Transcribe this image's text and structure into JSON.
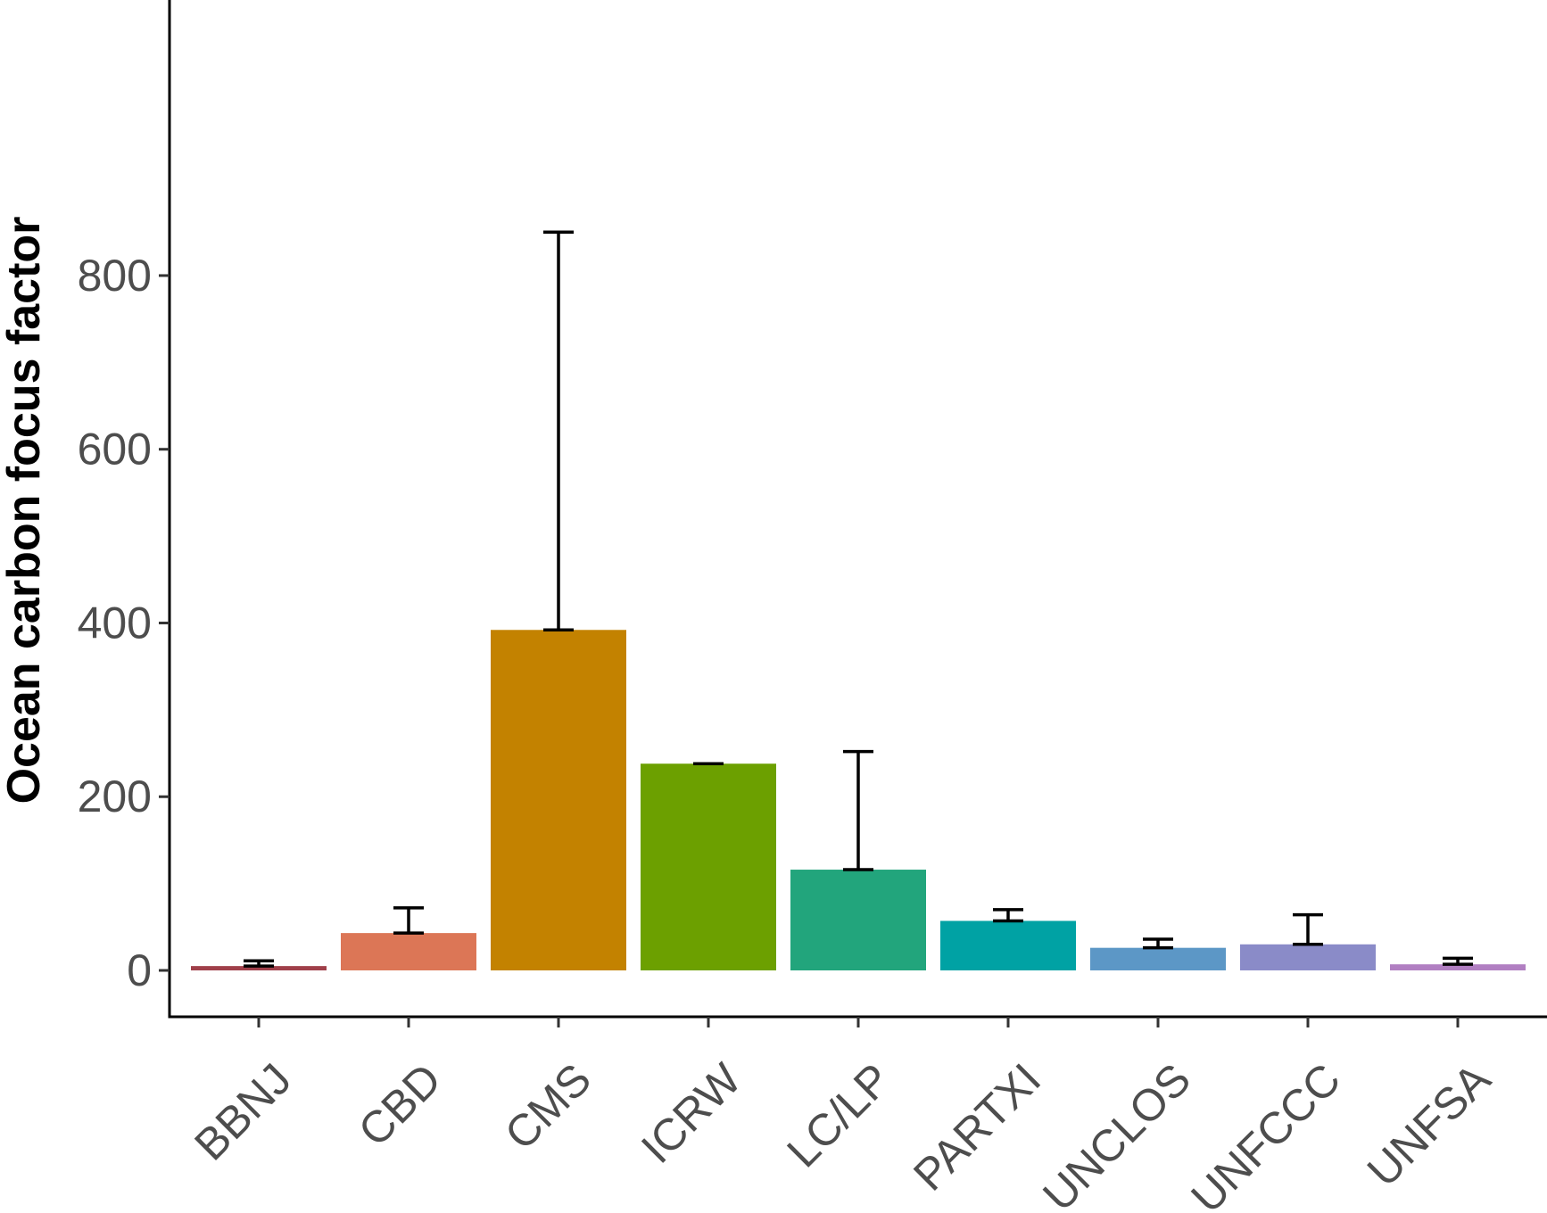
{
  "chart_data": {
    "type": "bar",
    "title": "",
    "xlabel": "",
    "ylabel": "Ocean carbon focus factor",
    "ylim": [
      -40,
      890
    ],
    "yticks": [
      0,
      200,
      400,
      600,
      800
    ],
    "grid": false,
    "legend": "none",
    "categories": [
      "BBNJ",
      "CBD",
      "CMS",
      "ICRW",
      "LC/LP",
      "PARTXI",
      "UNCLOS",
      "UNFCCC",
      "UNFSA"
    ],
    "values": [
      5,
      43,
      392,
      238,
      116,
      57,
      26,
      30,
      7
    ],
    "error_upper": [
      11,
      72,
      850,
      238,
      252,
      70,
      36,
      64,
      14
    ],
    "colors": [
      "#a0404a",
      "#dc7656",
      "#c38200",
      "#6ca000",
      "#22a57c",
      "#00a2a4",
      "#5c97c6",
      "#8a8bc8",
      "#b17fc2"
    ]
  }
}
